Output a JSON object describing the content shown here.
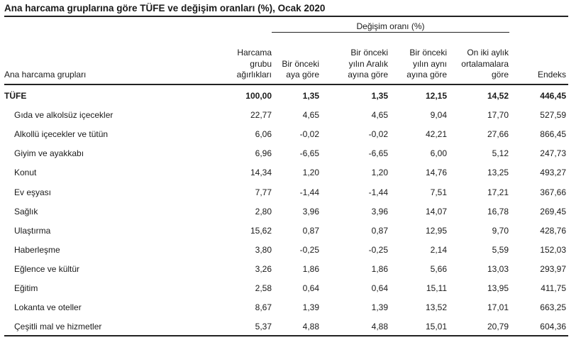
{
  "title": "Ana harcama gruplarına göre TÜFE ve değişim oranları (%), Ocak 2020",
  "header": {
    "change_group": "Değişim oranı (%)",
    "category": "Ana harcama grupları",
    "weight": "Harcama grubu ağırlıkları",
    "monthly": "Bir önceki aya göre",
    "december": "Bir önceki yılın Aralık ayına göre",
    "annual": "Bir önceki yılın aynı ayına göre",
    "twelve_month": "On iki aylık ortalamalara göre",
    "index": "Endeks"
  },
  "header_lines": {
    "weight": [
      "Harcama",
      "grubu",
      "ağırlıkları"
    ],
    "monthly": [
      "Bir önceki",
      "aya göre"
    ],
    "december": [
      "Bir önceki",
      "yılın Aralık",
      "ayına göre"
    ],
    "annual": [
      "Bir önceki",
      "yılın aynı",
      "ayına göre"
    ],
    "twelve_month": [
      "On iki aylık",
      "ortalamalara",
      "göre"
    ],
    "index": [
      "Endeks"
    ]
  },
  "rows": [
    {
      "name": "TÜFE",
      "weight": "100,00",
      "monthly": "1,35",
      "december": "1,35",
      "annual": "12,15",
      "twelve_month": "14,52",
      "index": "446,45"
    },
    {
      "name": "Gıda ve alkolsüz içecekler",
      "weight": "22,77",
      "monthly": "4,65",
      "december": "4,65",
      "annual": "9,04",
      "twelve_month": "17,70",
      "index": "527,59"
    },
    {
      "name": "Alkollü içecekler ve tütün",
      "weight": "6,06",
      "monthly": "-0,02",
      "december": "-0,02",
      "annual": "42,21",
      "twelve_month": "27,66",
      "index": "866,45"
    },
    {
      "name": "Giyim ve ayakkabı",
      "weight": "6,96",
      "monthly": "-6,65",
      "december": "-6,65",
      "annual": "6,00",
      "twelve_month": "5,12",
      "index": "247,73"
    },
    {
      "name": "Konut",
      "weight": "14,34",
      "monthly": "1,20",
      "december": "1,20",
      "annual": "14,76",
      "twelve_month": "13,25",
      "index": "493,27"
    },
    {
      "name": "Ev eşyası",
      "weight": "7,77",
      "monthly": "-1,44",
      "december": "-1,44",
      "annual": "7,51",
      "twelve_month": "17,21",
      "index": "367,66"
    },
    {
      "name": "Sağlık",
      "weight": "2,80",
      "monthly": "3,96",
      "december": "3,96",
      "annual": "14,07",
      "twelve_month": "16,78",
      "index": "269,45"
    },
    {
      "name": "Ulaştırma",
      "weight": "15,62",
      "monthly": "0,87",
      "december": "0,87",
      "annual": "12,95",
      "twelve_month": "9,70",
      "index": "428,76"
    },
    {
      "name": "Haberleşme",
      "weight": "3,80",
      "monthly": "-0,25",
      "december": "-0,25",
      "annual": "2,14",
      "twelve_month": "5,59",
      "index": "152,03"
    },
    {
      "name": "Eğlence ve kültür",
      "weight": "3,26",
      "monthly": "1,86",
      "december": "1,86",
      "annual": "5,66",
      "twelve_month": "13,03",
      "index": "293,97"
    },
    {
      "name": "Eğitim",
      "weight": "2,58",
      "monthly": "0,64",
      "december": "0,64",
      "annual": "15,11",
      "twelve_month": "13,95",
      "index": "411,75"
    },
    {
      "name": "Lokanta ve oteller",
      "weight": "8,67",
      "monthly": "1,39",
      "december": "1,39",
      "annual": "13,52",
      "twelve_month": "17,01",
      "index": "663,25"
    },
    {
      "name": "Çeşitli mal ve hizmetler",
      "weight": "5,37",
      "monthly": "4,88",
      "december": "4,88",
      "annual": "15,01",
      "twelve_month": "20,79",
      "index": "604,36"
    }
  ]
}
